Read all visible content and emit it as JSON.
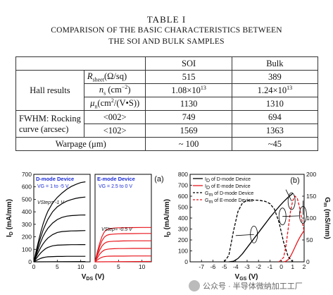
{
  "table": {
    "title": "TABLE I",
    "caption_line1": "COMPARISON OF THE BASIC CHARACTERISTICS BETWEEN",
    "caption_line2": "THE SOI AND BULK SAMPLES",
    "col_soi": "SOI",
    "col_bulk": "Bulk",
    "hall_label": "Hall results",
    "rsheet_sym": "R",
    "rsheet_sub": "sheet",
    "rsheet_unit": "(Ω/sq)",
    "rsheet_soi": "515",
    "rsheet_bulk": "389",
    "ns_sym": "n",
    "ns_sub": "s",
    "ns_unit_a": " (cm",
    "ns_unit_exp": "−2",
    "ns_unit_b": ")",
    "ns_soi_base": "1.08×10",
    "ns_soi_exp": "13",
    "ns_bulk_base": "1.24×10",
    "ns_bulk_exp": "13",
    "mu_sym": "μ",
    "mu_sub": "n",
    "mu_unit_a": "(cm",
    "mu_unit_exp": "2",
    "mu_unit_b": "/(V•S))",
    "mu_soi": "1130",
    "mu_bulk": "1310",
    "fwhm_line1": "FWHM: Rocking",
    "fwhm_line2": "curve (arcsec)",
    "r002_label": "<002>",
    "r002_soi": "749",
    "r002_bulk": "694",
    "r102_label": "<102>",
    "r102_soi": "1569",
    "r102_bulk": "1363",
    "warpage_label": "Warpage (μm)",
    "warpage_soi": "~ 100",
    "warpage_bulk": "~45"
  },
  "watermark": "公众号 · 半导体微纳加工工厂",
  "chart_data": [
    {
      "type": "line",
      "panel": "(a)",
      "ylabel": "I_D (mA/mm)",
      "xlabel": "V_DS (V)",
      "ylim": [
        0,
        700
      ],
      "y_ticks": [
        0,
        100,
        200,
        300,
        400,
        500,
        600,
        700
      ],
      "y_tick_labels": [
        "0",
        "100",
        "200",
        "300",
        "400",
        "500",
        "600",
        "700"
      ],
      "subplots": [
        {
          "label": "D-mode Device",
          "condition": "VG = 1 to -5 V",
          "step": "VStep= -1 V",
          "color": "#000000",
          "xlim": [
            0,
            12
          ],
          "x_ticks": [
            0,
            5,
            10
          ],
          "x_tick_labels": [
            "0",
            "5",
            "10"
          ],
          "series": [
            {
              "name": "VG = 1 V",
              "x": [
                0,
                0.5,
                1,
                1.5,
                2,
                2.5,
                3,
                4,
                5,
                6,
                7,
                8,
                9,
                10,
                11
              ],
              "values": [
                0,
                85,
                165,
                240,
                305,
                360,
                405,
                470,
                515,
                550,
                580,
                603,
                620,
                634,
                640
              ]
            },
            {
              "name": "VG = 0 V",
              "x": [
                0,
                0.5,
                1,
                1.5,
                2,
                2.5,
                3,
                4,
                5,
                6,
                7,
                8,
                9,
                10,
                11
              ],
              "values": [
                0,
                70,
                140,
                200,
                255,
                300,
                340,
                400,
                440,
                465,
                485,
                498,
                508,
                514,
                518
              ]
            },
            {
              "name": "VG = -1 V",
              "x": [
                0,
                0.5,
                1,
                1.5,
                2,
                2.5,
                3,
                4,
                5,
                6,
                7,
                8,
                9,
                10,
                11
              ],
              "values": [
                0,
                55,
                110,
                160,
                205,
                240,
                268,
                310,
                338,
                355,
                365,
                370,
                372,
                374,
                375
              ]
            },
            {
              "name": "VG = -2 V",
              "x": [
                0,
                0.5,
                1,
                1.5,
                2,
                2.5,
                3,
                4,
                5,
                6,
                7,
                8,
                9,
                10,
                11
              ],
              "values": [
                0,
                40,
                80,
                115,
                145,
                170,
                190,
                218,
                235,
                242,
                245,
                247,
                248,
                249,
                250
              ]
            },
            {
              "name": "VG = -3 V",
              "x": [
                0,
                0.5,
                1,
                1.5,
                2,
                2.5,
                3,
                4,
                5,
                6,
                7,
                8,
                9,
                10,
                11
              ],
              "values": [
                0,
                25,
                50,
                72,
                90,
                105,
                115,
                128,
                133,
                135,
                136,
                137,
                137,
                138,
                138
              ]
            },
            {
              "name": "VG = -4 V",
              "x": [
                0,
                0.5,
                1,
                1.5,
                2,
                2.5,
                3,
                4,
                5,
                6,
                7,
                8,
                9,
                10,
                11
              ],
              "values": [
                0,
                10,
                20,
                28,
                34,
                38,
                40,
                42,
                43,
                43,
                44,
                44,
                44,
                44,
                44
              ]
            },
            {
              "name": "VG = -5 V",
              "x": [
                0,
                11
              ],
              "values": [
                0,
                2
              ]
            }
          ]
        },
        {
          "label": "E-mode Device",
          "condition": "VG = 2.5 to 0 V",
          "step": "VStep= -0.5 V",
          "color": "#e8161c",
          "xlim": [
            0,
            12
          ],
          "x_ticks": [
            0,
            5,
            10
          ],
          "x_tick_labels": [
            "0",
            "5",
            "10"
          ],
          "series": [
            {
              "name": "VG = 2.5 V",
              "x": [
                0,
                0.5,
                1,
                1.5,
                2,
                2.5,
                3,
                4,
                5,
                6,
                8,
                10,
                12
              ],
              "values": [
                0,
                80,
                150,
                205,
                240,
                258,
                265,
                270,
                272,
                273,
                274,
                275,
                275
              ]
            },
            {
              "name": "VG = 2 V",
              "x": [
                0,
                0.5,
                1,
                1.5,
                2,
                2.5,
                3,
                4,
                5,
                6,
                8,
                10,
                12
              ],
              "values": [
                0,
                65,
                125,
                170,
                198,
                212,
                218,
                222,
                224,
                225,
                226,
                227,
                227
              ]
            },
            {
              "name": "VG = 1.5 V",
              "x": [
                0,
                0.5,
                1,
                1.5,
                2,
                2.5,
                3,
                4,
                5,
                6,
                8,
                10,
                12
              ],
              "values": [
                0,
                50,
                95,
                128,
                148,
                158,
                162,
                165,
                166,
                167,
                168,
                168,
                168
              ]
            },
            {
              "name": "VG = 1 V",
              "x": [
                0,
                0.5,
                1,
                1.5,
                2,
                2.5,
                3,
                4,
                5,
                6,
                8,
                10,
                12
              ],
              "values": [
                0,
                32,
                62,
                82,
                95,
                100,
                103,
                105,
                106,
                106,
                107,
                107,
                107
              ]
            },
            {
              "name": "VG = 0.5 V",
              "x": [
                0,
                0.5,
                1,
                1.5,
                2,
                2.5,
                3,
                4,
                5,
                6,
                8,
                10,
                12
              ],
              "values": [
                0,
                15,
                28,
                37,
                42,
                44,
                45,
                46,
                46,
                46,
                47,
                47,
                47
              ]
            },
            {
              "name": "VG = 0 V",
              "x": [
                0,
                12
              ],
              "values": [
                0,
                3
              ]
            }
          ]
        }
      ]
    },
    {
      "type": "line",
      "panel": "(b)",
      "xlabel": "V_GS (V)",
      "ylabel": "I_D (mA/mm)",
      "ylabel_right": "G_m (mS/mm)",
      "xlim": [
        -8,
        2
      ],
      "ylim": [
        0,
        800
      ],
      "ylim_right": [
        0,
        200
      ],
      "x_ticks": [
        -8,
        -7,
        -6,
        -5,
        -4,
        -3,
        -2,
        -1,
        0,
        1,
        2
      ],
      "x_tick_labels": [
        "",
        "-7",
        "-6",
        "-5",
        "-4",
        "-3",
        "-2",
        "-1",
        "0",
        "1",
        "2"
      ],
      "y_ticks": [
        0,
        100,
        200,
        300,
        400,
        500,
        600,
        700,
        800
      ],
      "y_tick_labels": [
        "0",
        "100",
        "200",
        "300",
        "400",
        "500",
        "600",
        "700",
        "800"
      ],
      "y_right_ticks": [
        0,
        50,
        100,
        150,
        200
      ],
      "y_right_tick_labels": [
        "0",
        "50",
        "100",
        "150",
        "200"
      ],
      "legend": "top-left",
      "series": [
        {
          "name": "I_D of D-mode Device",
          "axis": "left",
          "style": "solid",
          "color": "#000000",
          "x": [
            -4.6,
            -4.2,
            -3.8,
            -3.4,
            -3.0,
            -2.6,
            -2.2,
            -1.8,
            -1.4,
            -1.0,
            -0.6,
            -0.2,
            0.2,
            0.6,
            1.0
          ],
          "values": [
            0,
            5,
            30,
            75,
            130,
            185,
            240,
            295,
            350,
            405,
            455,
            505,
            550,
            590,
            625
          ]
        },
        {
          "name": "I_D of E-mode Device",
          "axis": "left",
          "style": "solid",
          "color": "#e8161c",
          "x": [
            0.2,
            0.4,
            0.6,
            0.8,
            1.0,
            1.2,
            1.4,
            1.6,
            1.8,
            2.0
          ],
          "values": [
            0,
            5,
            20,
            50,
            90,
            135,
            180,
            220,
            255,
            285
          ]
        },
        {
          "name": "G_m of D-mode Device",
          "axis": "right",
          "style": "dashed",
          "color": "#000000",
          "x": [
            -5.0,
            -4.6,
            -4.2,
            -3.8,
            -3.4,
            -3.0,
            -2.6,
            -2.2,
            -1.8,
            -1.4,
            -1.0,
            -0.6,
            -0.2,
            0.2,
            0.6,
            1.0
          ],
          "values": [
            0,
            15,
            70,
            115,
            135,
            140,
            141,
            141,
            140,
            138,
            133,
            120,
            90,
            45,
            12,
            0
          ]
        },
        {
          "name": "G_m of E-mode Device",
          "axis": "right",
          "style": "dashed",
          "color": "#e8161c",
          "x": [
            -0.2,
            0.2,
            0.4,
            0.6,
            0.8,
            1.0,
            1.2,
            1.4,
            1.6,
            1.8,
            2.0
          ],
          "values": [
            0,
            10,
            35,
            75,
            115,
            140,
            150,
            145,
            125,
            95,
            70
          ]
        }
      ]
    }
  ]
}
